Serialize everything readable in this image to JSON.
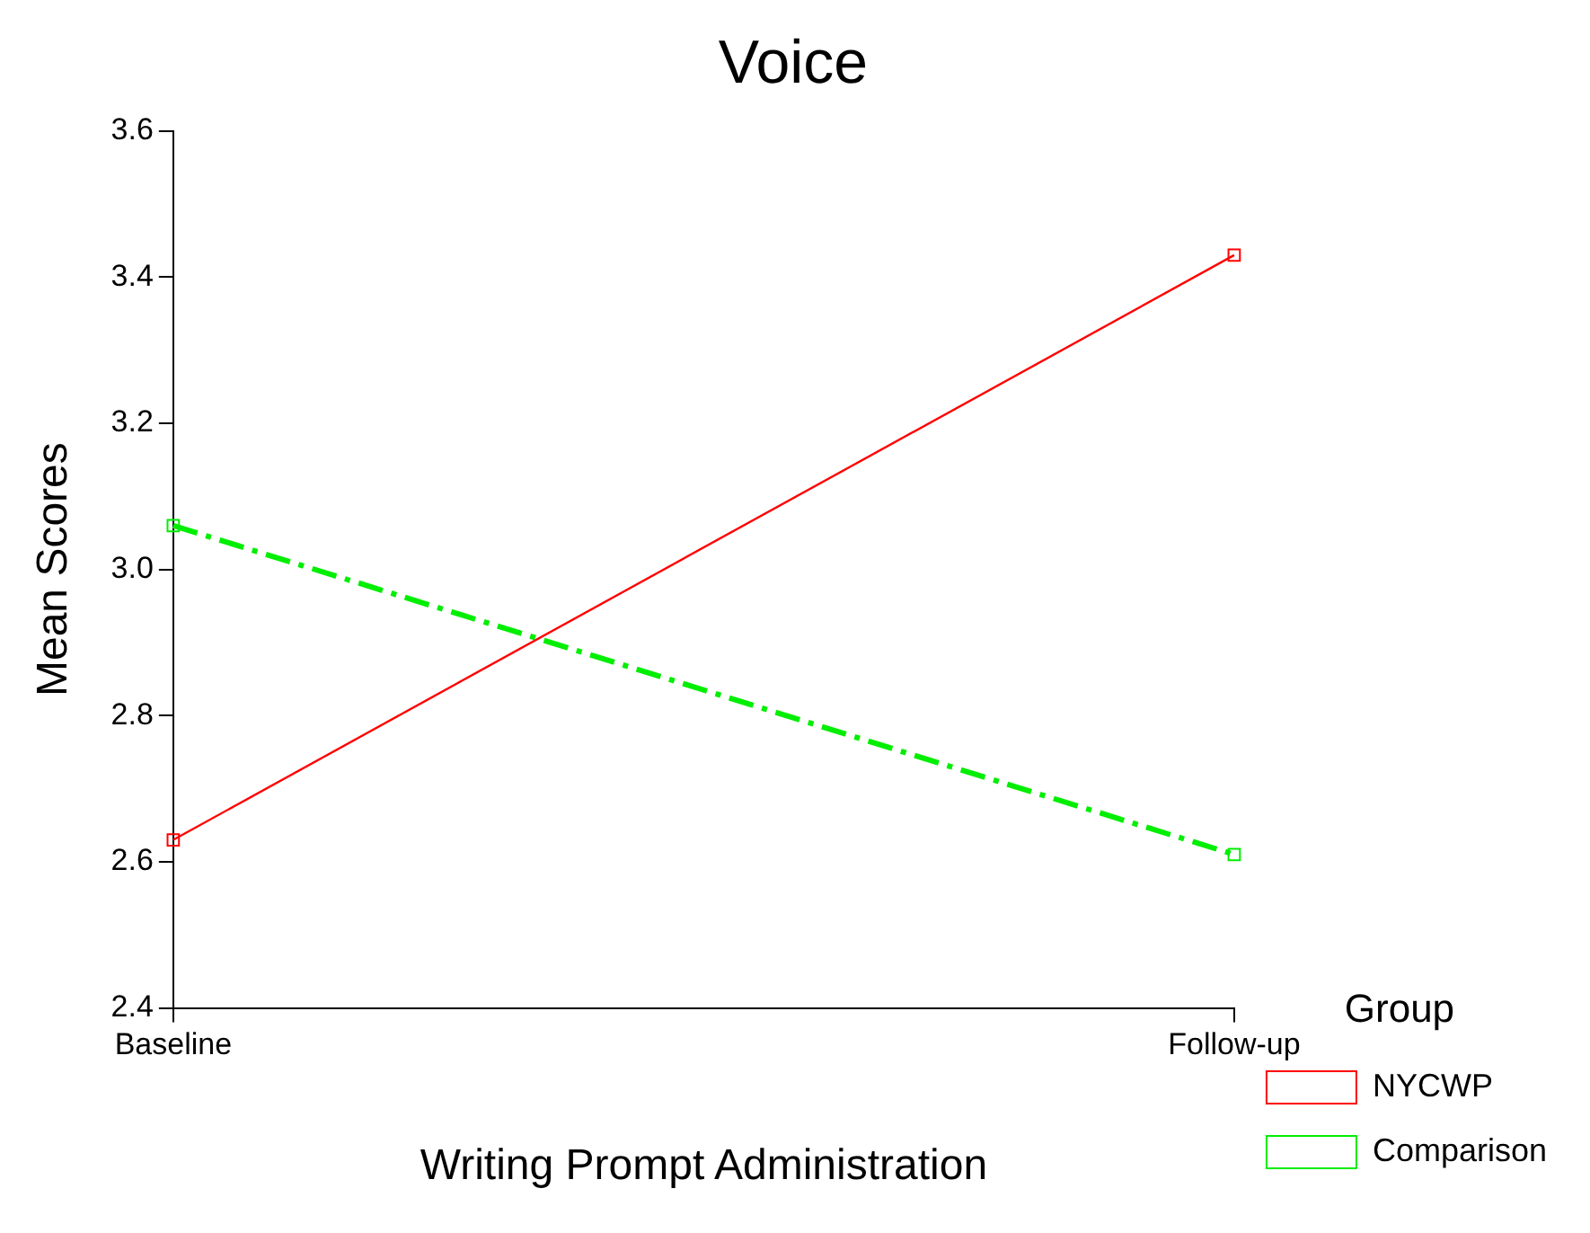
{
  "chart_data": {
    "type": "line",
    "title": "Voice",
    "xlabel": "Writing Prompt Administration",
    "ylabel": "Mean Scores",
    "legend_title": "Group",
    "categories": [
      "Baseline",
      "Follow-up"
    ],
    "series": [
      {
        "name": "NYCWP",
        "color": "#ff0000",
        "values": [
          2.63,
          3.43
        ],
        "line_style": "solid"
      },
      {
        "name": "Comparison",
        "color": "#00ee00",
        "values": [
          3.06,
          2.61
        ],
        "line_style": "dashdot"
      }
    ],
    "ylim": [
      2.4,
      3.6
    ],
    "yticks": [
      2.4,
      2.6,
      2.8,
      {
        "value": 3.0,
        "label": "3.0"
      },
      3.2,
      3.4,
      3.6
    ],
    "grid": false,
    "legend": "right",
    "marker": "square"
  }
}
